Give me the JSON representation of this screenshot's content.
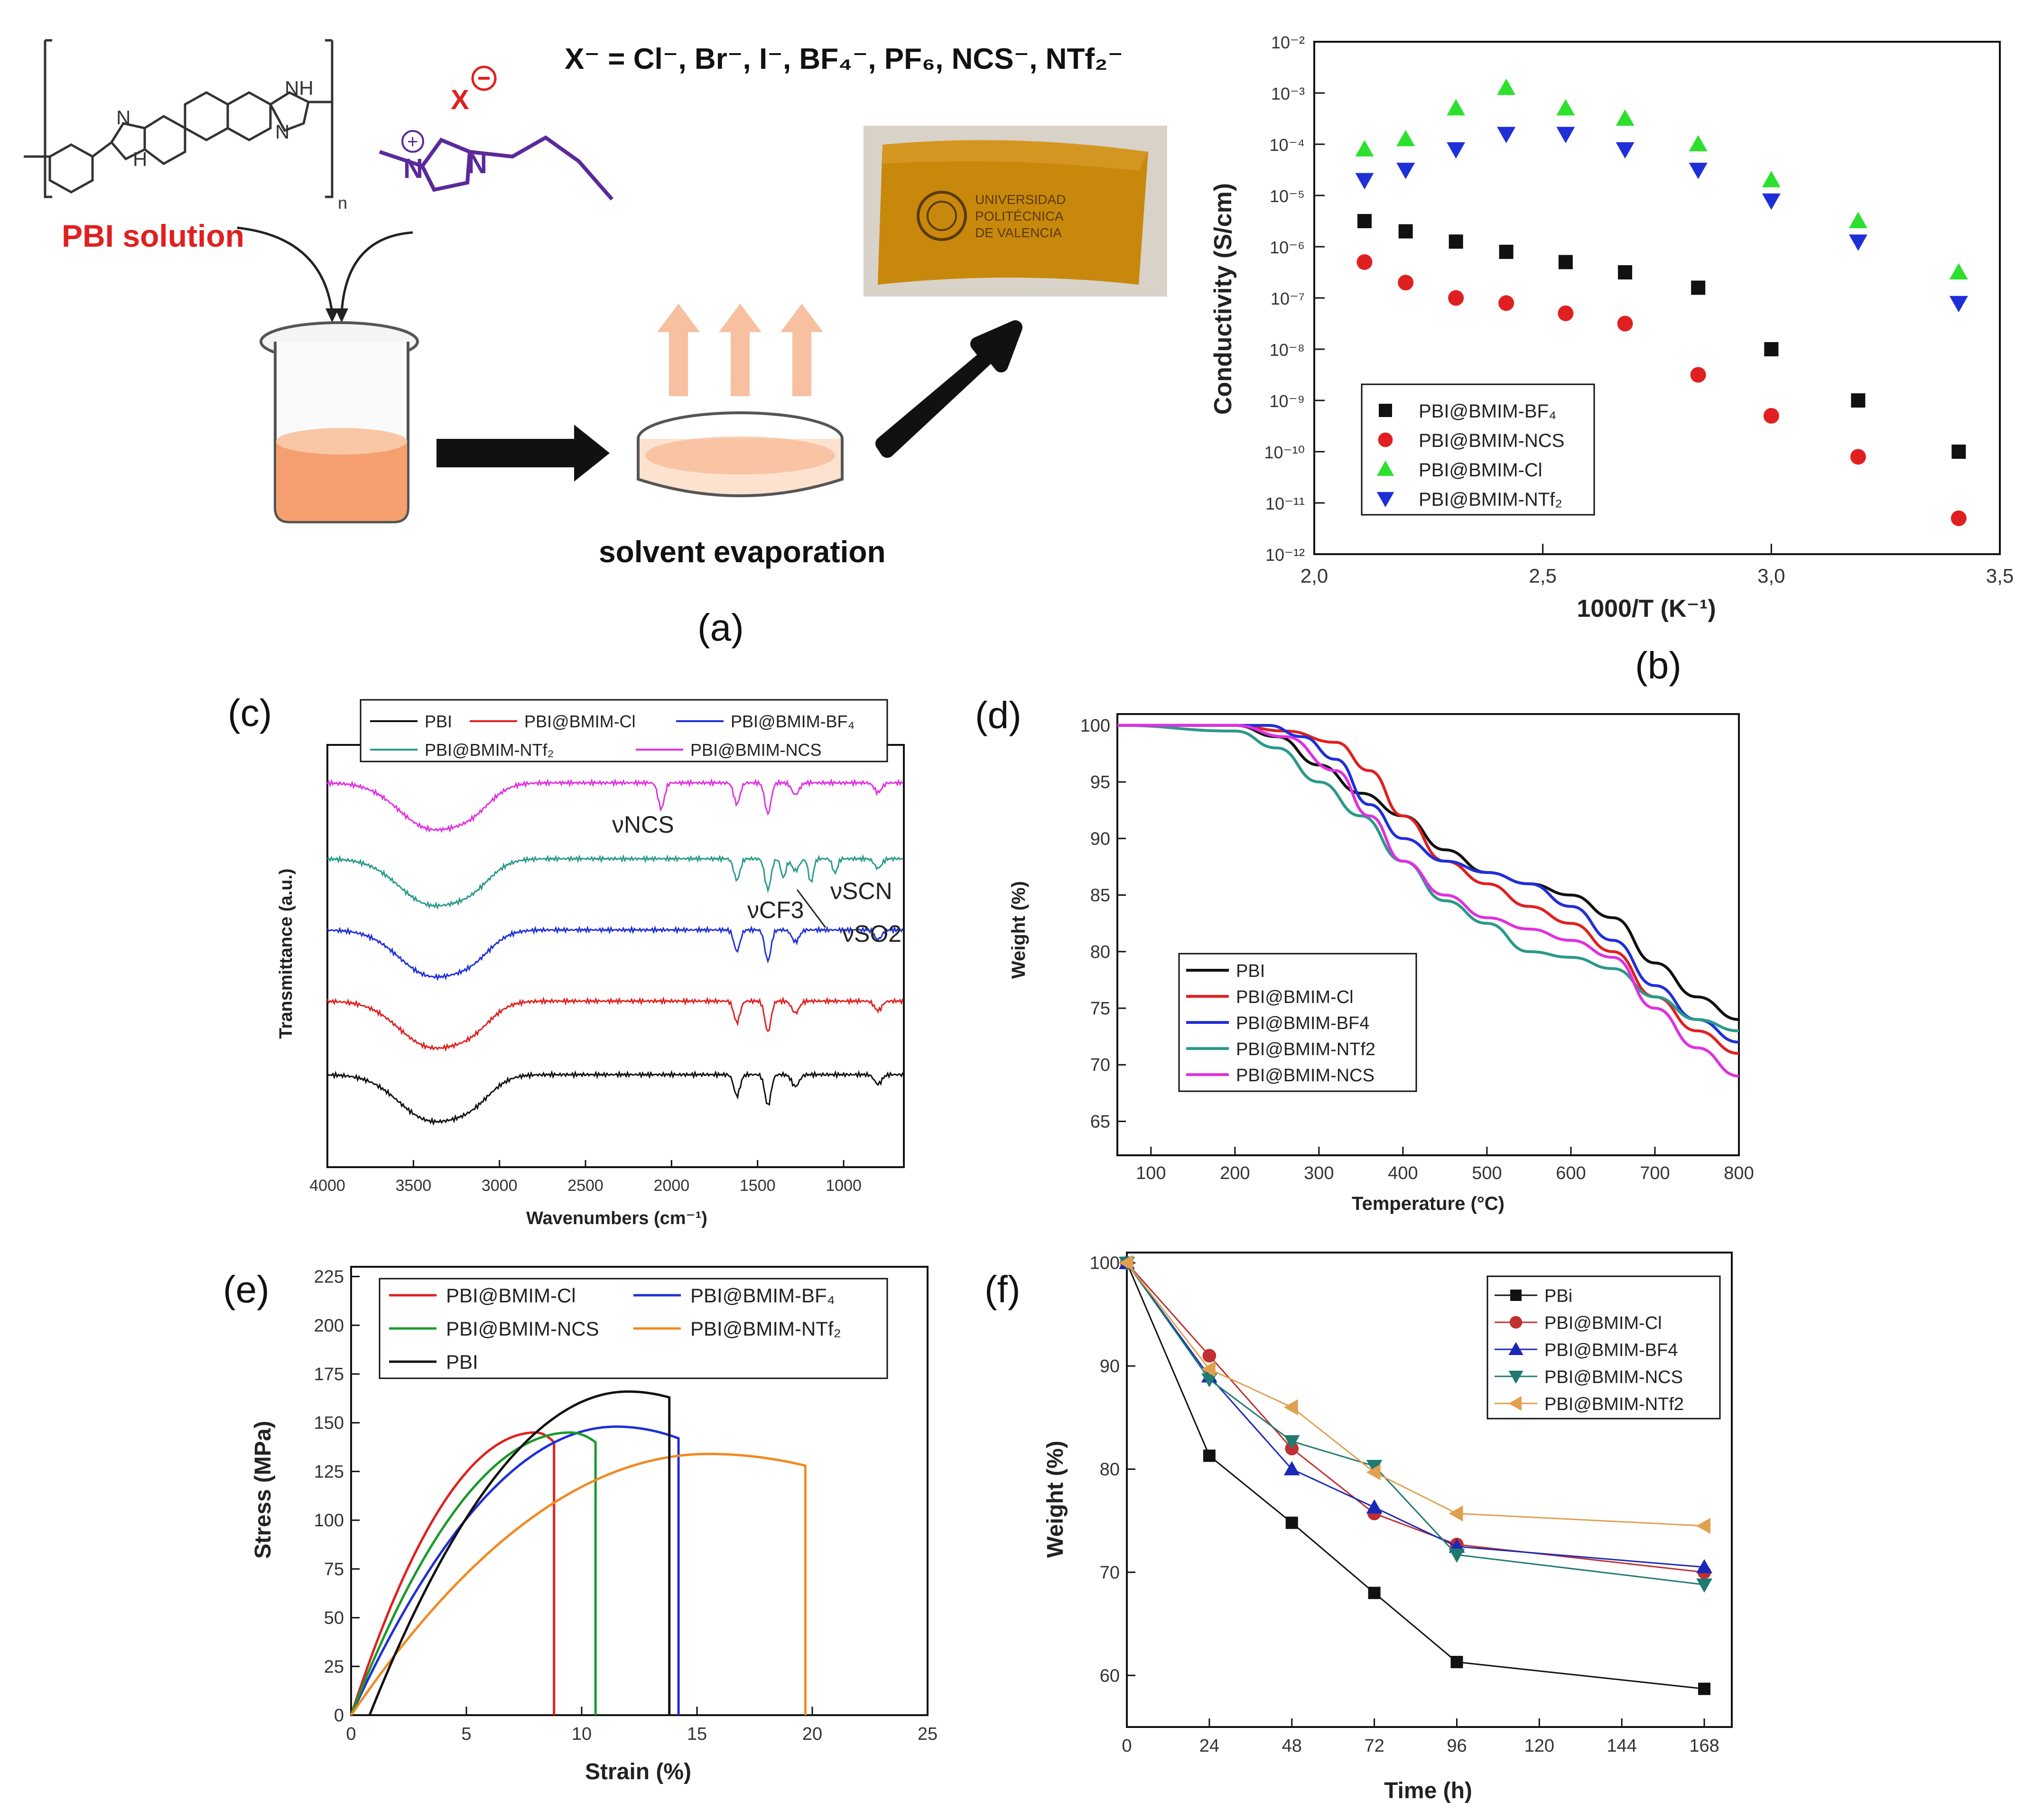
{
  "panels": {
    "a": {
      "label": "(a)",
      "anion_line": "X⁻ = Cl⁻, Br⁻, I⁻, BF₄⁻, PF₆, NCS⁻, NTf₂⁻",
      "anion_symbol": "X",
      "pbi_label": "PBI solution",
      "evap_label": "solvent evaporation",
      "atoms": {
        "n1": "N",
        "h1": "H",
        "n2": "N",
        "h2": "H",
        "nh": "NH",
        "sub_n": "n",
        "nplus": "N",
        "n3": "N"
      },
      "film_text": [
        "UNIVERSIDAD",
        "POLITÉCNICA",
        "DE VALENCIA"
      ]
    },
    "b": {
      "label": "(b)",
      "y_axis_label": "Conductivity (S/cm)",
      "x_axis_label": "1000/T (K⁻¹)",
      "x_ticks": [
        "2,0",
        "2,5",
        "3,0",
        "3,5"
      ],
      "y_ticks": [
        "10⁻¹²",
        "10⁻¹¹",
        "10⁻¹⁰",
        "10⁻⁹",
        "10⁻⁸",
        "10⁻⁷",
        "10⁻⁶",
        "10⁻⁵",
        "10⁻⁴",
        "10⁻³",
        "10⁻²"
      ],
      "legend": [
        "PBI@BMIM-BF₄",
        "PBI@BMIM-NCS",
        "PBI@BMIM-Cl",
        "PBI@BMIM-NTf₂"
      ]
    },
    "c": {
      "label": "(c)",
      "y_axis_label": "Transmittance (a.u.)",
      "x_axis_label": "Wavenumbers (cm⁻¹)",
      "x_ticks": [
        "4000",
        "3500",
        "3000",
        "2500",
        "2000",
        "1500",
        "1000"
      ],
      "legend": [
        "PBI",
        "PBI@BMIM-Cl",
        "PBI@BMIM-BF₄",
        "PBI@BMIM-NTf₂",
        "PBI@BMIM-NCS"
      ],
      "annotations": {
        "ncs": "νNCS",
        "cf3": "νCF3",
        "scn": "νSCN",
        "so2": "νSO2"
      }
    },
    "d": {
      "label": "(d)",
      "y_axis_label": "Weight (%)",
      "x_axis_label": "Temperature (°C)",
      "legend": [
        "PBI",
        "PBI@BMIM-Cl",
        "PBI@BMIM-BF4",
        "PBI@BMIM-NTf2",
        "PBI@BMIM-NCS"
      ]
    },
    "e": {
      "label": "(e)",
      "y_axis_label": "Stress (MPa)",
      "x_axis_label": "Strain (%)",
      "legend": [
        "PBI@BMIM-Cl",
        "PBI@BMIM-BF₄",
        "PBI@BMIM-NCS",
        "PBI@BMIM-NTf₂",
        "PBI"
      ]
    },
    "f": {
      "label": "(f)",
      "y_axis_label": "Weight (%)",
      "x_axis_label": "Time (h)",
      "legend": [
        "PBi",
        "PBI@BMIM-Cl",
        "PBI@BMIM-BF4",
        "PBI@BMIM-NCS",
        "PBI@BMIM-NTf2"
      ]
    }
  },
  "colors": {
    "black": "#111111",
    "red": "#e02020",
    "blue": "#1f2fd8",
    "green": "#2ee02e",
    "teal": "#2a9a8a",
    "magenta": "#e030e0",
    "darkgreen": "#1a9a2a",
    "orange": "#f08a20",
    "tan": "#e0a050",
    "darkred": "#c03030",
    "darkblue": "#1a28b8",
    "darkteal": "#207a70",
    "purple": "#5a2a9a",
    "pbi_red": "#e02020",
    "liquid": "#f6a070"
  },
  "chart_data": [
    {
      "id": "b",
      "type": "scatter",
      "title": "",
      "xlabel": "1000/T (K⁻¹)",
      "ylabel": "Conductivity (S/cm)",
      "xlim": [
        2.0,
        3.5
      ],
      "ylim_log10": [
        -12,
        -2
      ],
      "x": [
        2.11,
        2.2,
        2.31,
        2.42,
        2.55,
        2.68,
        2.84,
        3.0,
        3.19,
        3.41
      ],
      "series": [
        {
          "name": "PBI@BMIM-BF₄",
          "marker": "square",
          "color": "#111111",
          "log10_values": [
            -5.5,
            -5.7,
            -5.9,
            -6.1,
            -6.3,
            -6.5,
            -6.8,
            -8.0,
            -9.0,
            -10.0
          ]
        },
        {
          "name": "PBI@BMIM-NCS",
          "marker": "circle",
          "color": "#e02020",
          "log10_values": [
            -6.3,
            -6.7,
            -7.0,
            -7.1,
            -7.3,
            -7.5,
            -8.5,
            -9.3,
            -10.1,
            -11.3
          ]
        },
        {
          "name": "PBI@BMIM-Cl",
          "marker": "triangle-up",
          "color": "#2ee02e",
          "log10_values": [
            -4.1,
            -3.9,
            -3.3,
            -2.9,
            -3.3,
            -3.5,
            -4.0,
            -4.7,
            -5.5,
            -6.5
          ]
        },
        {
          "name": "PBI@BMIM-NTf₂",
          "marker": "triangle-down",
          "color": "#1f2fd8",
          "log10_values": [
            -4.7,
            -4.5,
            -4.1,
            -3.8,
            -3.8,
            -4.1,
            -4.5,
            -5.1,
            -5.9,
            -7.1
          ]
        }
      ]
    },
    {
      "id": "c",
      "type": "line",
      "title": "",
      "xlabel": "Wavenumbers (cm⁻¹)",
      "ylabel": "Transmittance (a.u.)",
      "xlim": [
        4000,
        650
      ],
      "series": [
        {
          "name": "PBI",
          "color": "#111111",
          "offset": 0
        },
        {
          "name": "PBI@BMIM-Cl",
          "color": "#e02020",
          "offset": 1
        },
        {
          "name": "PBI@BMIM-BF₄",
          "color": "#1f2fd8",
          "offset": 2
        },
        {
          "name": "PBI@BMIM-NTf₂",
          "color": "#2a9a8a",
          "offset": 3
        },
        {
          "name": "PBI@BMIM-NCS",
          "color": "#e030e0",
          "offset": 4
        }
      ]
    },
    {
      "id": "d",
      "type": "line",
      "title": "",
      "xlabel": "Temperature (°C)",
      "ylabel": "Weight (%)",
      "xlim": [
        60,
        800
      ],
      "ylim": [
        62,
        101
      ],
      "x_ticks": [
        100,
        200,
        300,
        400,
        500,
        600,
        700,
        800
      ],
      "y_ticks": [
        65,
        70,
        75,
        80,
        85,
        90,
        95,
        100
      ],
      "series": [
        {
          "name": "PBI",
          "color": "#111111",
          "points": [
            [
              60,
              100
            ],
            [
              200,
              100
            ],
            [
              250,
              99
            ],
            [
              300,
              96.5
            ],
            [
              350,
              94
            ],
            [
              400,
              92
            ],
            [
              450,
              89
            ],
            [
              500,
              87
            ],
            [
              550,
              86
            ],
            [
              600,
              85
            ],
            [
              650,
              83
            ],
            [
              700,
              79
            ],
            [
              750,
              76
            ],
            [
              800,
              74
            ]
          ]
        },
        {
          "name": "PBI@BMIM-Cl",
          "color": "#e02020",
          "points": [
            [
              60,
              100
            ],
            [
              200,
              100
            ],
            [
              260,
              99.5
            ],
            [
              320,
              98.5
            ],
            [
              360,
              96
            ],
            [
              400,
              92
            ],
            [
              450,
              88
            ],
            [
              500,
              86
            ],
            [
              550,
              84
            ],
            [
              600,
              82.5
            ],
            [
              650,
              80
            ],
            [
              700,
              76
            ],
            [
              750,
              73
            ],
            [
              800,
              71
            ]
          ]
        },
        {
          "name": "PBI@BMIM-BF4",
          "color": "#1f2fd8",
          "points": [
            [
              60,
              100
            ],
            [
              200,
              100
            ],
            [
              240,
              100
            ],
            [
              280,
              99
            ],
            [
              320,
              97
            ],
            [
              360,
              93
            ],
            [
              400,
              90
            ],
            [
              450,
              88
            ],
            [
              500,
              87
            ],
            [
              550,
              86
            ],
            [
              600,
              84
            ],
            [
              650,
              81
            ],
            [
              700,
              77
            ],
            [
              750,
              74
            ],
            [
              800,
              72
            ]
          ]
        },
        {
          "name": "PBI@BMIM-NTf2",
          "color": "#2a9a8a",
          "points": [
            [
              60,
              100
            ],
            [
              200,
              99.5
            ],
            [
              250,
              98
            ],
            [
              300,
              95
            ],
            [
              350,
              92
            ],
            [
              400,
              88
            ],
            [
              450,
              84.5
            ],
            [
              500,
              82.5
            ],
            [
              550,
              80
            ],
            [
              600,
              79.5
            ],
            [
              650,
              78.5
            ],
            [
              700,
              76
            ],
            [
              750,
              74
            ],
            [
              800,
              73
            ]
          ]
        },
        {
          "name": "PBI@BMIM-NCS",
          "color": "#e030e0",
          "points": [
            [
              60,
              100
            ],
            [
              200,
              100
            ],
            [
              260,
              99
            ],
            [
              320,
              96
            ],
            [
              360,
              92
            ],
            [
              400,
              88
            ],
            [
              450,
              85
            ],
            [
              500,
              83
            ],
            [
              550,
              82
            ],
            [
              600,
              81
            ],
            [
              650,
              79.5
            ],
            [
              700,
              75
            ],
            [
              750,
              71.5
            ],
            [
              800,
              69
            ]
          ]
        }
      ]
    },
    {
      "id": "e",
      "type": "line",
      "title": "",
      "xlabel": "Strain (%)",
      "ylabel": "Stress (MPa)",
      "xlim": [
        0,
        25
      ],
      "ylim": [
        0,
        230
      ],
      "x_ticks": [
        0,
        5,
        10,
        15,
        20,
        25
      ],
      "y_ticks": [
        0,
        25,
        50,
        75,
        100,
        125,
        150,
        175,
        200,
        225
      ],
      "series": [
        {
          "name": "PBI@BMIM-Cl",
          "color": "#e02020",
          "x0": 0.0,
          "peak_x": 8.0,
          "peak_y": 145,
          "break_x": 8.8,
          "break_y": 140
        },
        {
          "name": "PBI@BMIM-BF₄",
          "color": "#1f2fd8",
          "x0": 0.0,
          "peak_x": 11.5,
          "peak_y": 148,
          "break_x": 14.2,
          "break_y": 142
        },
        {
          "name": "PBI@BMIM-NCS",
          "color": "#1a9a2a",
          "x0": 0.0,
          "peak_x": 9.5,
          "peak_y": 145,
          "break_x": 10.6,
          "break_y": 140
        },
        {
          "name": "PBI@BMIM-NTf₂",
          "color": "#f08a20",
          "x0": 0.0,
          "peak_x": 15.5,
          "peak_y": 134,
          "break_x": 19.7,
          "break_y": 128
        },
        {
          "name": "PBI",
          "color": "#111111",
          "x0": 0.8,
          "peak_x": 12.0,
          "peak_y": 166,
          "break_x": 13.8,
          "break_y": 163
        }
      ]
    },
    {
      "id": "f",
      "type": "line",
      "title": "",
      "xlabel": "Time (h)",
      "ylabel": "Weight (%)",
      "xlim": [
        0,
        176
      ],
      "ylim": [
        55,
        101
      ],
      "x_ticks": [
        0,
        24,
        48,
        72,
        96,
        120,
        144,
        168
      ],
      "y_ticks": [
        60,
        70,
        80,
        90,
        100
      ],
      "x": [
        0,
        24,
        48,
        72,
        96,
        168
      ],
      "series": [
        {
          "name": "PBi",
          "marker": "square",
          "color": "#111111",
          "values": [
            100,
            81.3,
            74.8,
            68.0,
            61.3,
            58.7
          ]
        },
        {
          "name": "PBI@BMIM-Cl",
          "marker": "circle",
          "color": "#c03030",
          "values": [
            100,
            91.0,
            82.0,
            75.7,
            72.7,
            70.0
          ]
        },
        {
          "name": "PBI@BMIM-BF4",
          "marker": "triangle-up",
          "color": "#1a28b8",
          "values": [
            100,
            89.0,
            80.0,
            76.3,
            72.5,
            70.5
          ]
        },
        {
          "name": "PBI@BMIM-NCS",
          "marker": "triangle-down",
          "color": "#207a70",
          "values": [
            100,
            88.7,
            82.7,
            80.3,
            71.7,
            68.8
          ]
        },
        {
          "name": "PBI@BMIM-NTf2",
          "marker": "triangle-left",
          "color": "#e0a050",
          "values": [
            100,
            89.7,
            86.0,
            79.7,
            75.7,
            74.5
          ]
        }
      ]
    }
  ]
}
